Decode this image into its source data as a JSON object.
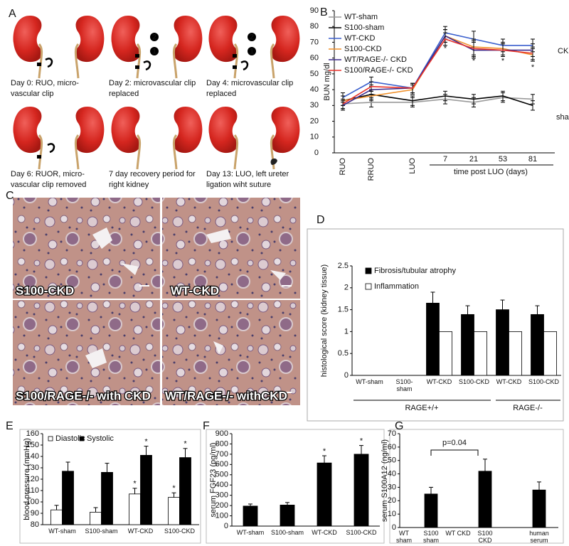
{
  "panel_a": {
    "label": "A",
    "steps": [
      {
        "caption": "Day 0:  RUO, micro-vascular clip"
      },
      {
        "caption": "Day 2:  microvascular clip replaced",
        "markers": [
          "2",
          "1"
        ]
      },
      {
        "caption": "Day 4:  microvascular clip replaced",
        "markers": [
          "2",
          "1"
        ]
      },
      {
        "caption": "Day 6:  RUOR, micro-vascular clip removed"
      },
      {
        "caption": "7 day recovery period for right kidney"
      },
      {
        "caption": "Day 13:  LUO, left ureter ligation wiht suture"
      }
    ]
  },
  "panel_c": {
    "label": "C",
    "images": [
      {
        "label": "S100-CKD"
      },
      {
        "label": "WT-CKD"
      },
      {
        "label": "S100/RAGE-/- with CKD"
      },
      {
        "label": "WT/RAGE-/- withCKD"
      }
    ]
  },
  "chart_data": [
    {
      "panel": "B",
      "type": "line",
      "y_label": "BUN mg/dl",
      "x_label": "time post LUO (days)",
      "categories": [
        "RUO",
        "RRUO",
        "LUO",
        "7",
        "21",
        "53",
        "81"
      ],
      "ylim": [
        0,
        90
      ],
      "yticks": [
        0,
        10,
        20,
        30,
        40,
        50,
        60,
        70,
        80,
        90
      ],
      "legend": "upper left",
      "group_labels": [
        "CKD",
        "sham"
      ],
      "series": [
        {
          "name": "WT-sham",
          "color": "#9a9a9a",
          "values": [
            31,
            32,
            32,
            34,
            32,
            35,
            34
          ],
          "errors": [
            3,
            3,
            3,
            3,
            3,
            3,
            3
          ]
        },
        {
          "name": "S100-sham",
          "color": "#000000",
          "values": [
            33,
            37,
            33,
            36,
            34,
            36,
            30
          ],
          "errors": [
            3,
            3,
            3,
            3,
            3,
            3,
            3
          ]
        },
        {
          "name": "WT-CKD",
          "color": "#3a5fcd",
          "values": [
            35,
            45,
            41,
            76,
            72,
            68,
            68
          ],
          "errors": [
            3,
            3,
            3,
            4,
            5,
            4,
            4
          ]
        },
        {
          "name": "S100-CKD",
          "color": "#f0902a",
          "values": [
            33,
            36,
            40,
            74,
            67,
            66,
            62
          ],
          "errors": [
            3,
            3,
            3,
            4,
            5,
            4,
            4
          ],
          "significance": [
            null,
            null,
            null,
            "*",
            "*",
            "*",
            "*"
          ]
        },
        {
          "name": "WT/RAGE-/- CKD",
          "color": "#3b2a8c",
          "values": [
            30,
            40,
            41,
            74,
            65,
            65,
            65
          ],
          "errors": [
            3,
            3,
            3,
            4,
            5,
            4,
            4
          ]
        },
        {
          "name": "S100/RAGE-/- CKD",
          "color": "#e8312a",
          "values": [
            31,
            42,
            41,
            72,
            66,
            65,
            63
          ],
          "errors": [
            3,
            3,
            3,
            4,
            5,
            4,
            4
          ]
        }
      ]
    },
    {
      "panel": "D",
      "type": "bar",
      "y_label": "histological score (kidney tissue)",
      "categories": [
        "WT-sham",
        "S100-sham",
        "WT-CKD",
        "S100-CKD",
        "WT-CKD",
        "S100-CKD"
      ],
      "group_labels": [
        "RAGE+/+",
        "RAGE-/-"
      ],
      "ylim": [
        0,
        2.5
      ],
      "yticks": [
        0,
        0.5,
        1,
        1.5,
        2,
        2.5
      ],
      "legend": "upper left",
      "series": [
        {
          "name": "Fibrosis/tubular atrophy",
          "color": "#000000",
          "values": [
            0,
            0,
            1.65,
            1.39,
            1.5,
            1.39
          ],
          "errors": [
            null,
            null,
            0.25,
            0.2,
            0.22,
            0.2
          ]
        },
        {
          "name": "Inflammation",
          "color": "#ffffff",
          "values": [
            0,
            0,
            1,
            1,
            1,
            1
          ]
        }
      ]
    },
    {
      "panel": "E",
      "type": "bar",
      "y_label": "blood pressure (mmHg)",
      "categories": [
        "WT-sham",
        "S100-sham",
        "WT-CKD",
        "S100-CKD"
      ],
      "ylim": [
        80,
        160
      ],
      "yticks": [
        80,
        90,
        100,
        110,
        120,
        130,
        140,
        150,
        160
      ],
      "legend": "upper left",
      "series": [
        {
          "name": "Diastolic",
          "color": "#ffffff",
          "values": [
            93,
            91,
            107,
            104
          ],
          "errors": [
            4,
            4,
            5,
            4
          ],
          "significance": [
            null,
            null,
            "*",
            "*"
          ]
        },
        {
          "name": "Systolic",
          "color": "#000000",
          "values": [
            127,
            126,
            141,
            139
          ],
          "errors": [
            8,
            8,
            8,
            8
          ],
          "significance": [
            null,
            null,
            "*",
            "*"
          ]
        }
      ]
    },
    {
      "panel": "F",
      "type": "bar",
      "y_label": "serum FGF23 (pg/ml)",
      "categories": [
        "WT-sham",
        "S100-sham",
        "WT-CKD",
        "S100-CKD"
      ],
      "ylim": [
        0,
        900
      ],
      "yticks": [
        0,
        100,
        200,
        300,
        400,
        500,
        600,
        700,
        800,
        900
      ],
      "color": "#000000",
      "values": [
        195,
        205,
        615,
        700
      ],
      "errors": [
        20,
        25,
        70,
        85
      ],
      "significance": [
        null,
        null,
        "*",
        "*"
      ]
    },
    {
      "panel": "G",
      "type": "bar",
      "y_label": "serum S100A12 (ng/ml)",
      "categories": [
        "WT sham",
        "S100 sham",
        "WT CKD",
        "S100 CKD",
        null,
        "human serum"
      ],
      "ylim": [
        0,
        70
      ],
      "yticks": [
        0,
        10,
        20,
        30,
        40,
        50,
        60,
        70
      ],
      "color": "#000000",
      "values": [
        null,
        25,
        null,
        42,
        null,
        28
      ],
      "errors": [
        null,
        5,
        null,
        9,
        null,
        6
      ],
      "comparison_label": "p=0.04"
    }
  ]
}
